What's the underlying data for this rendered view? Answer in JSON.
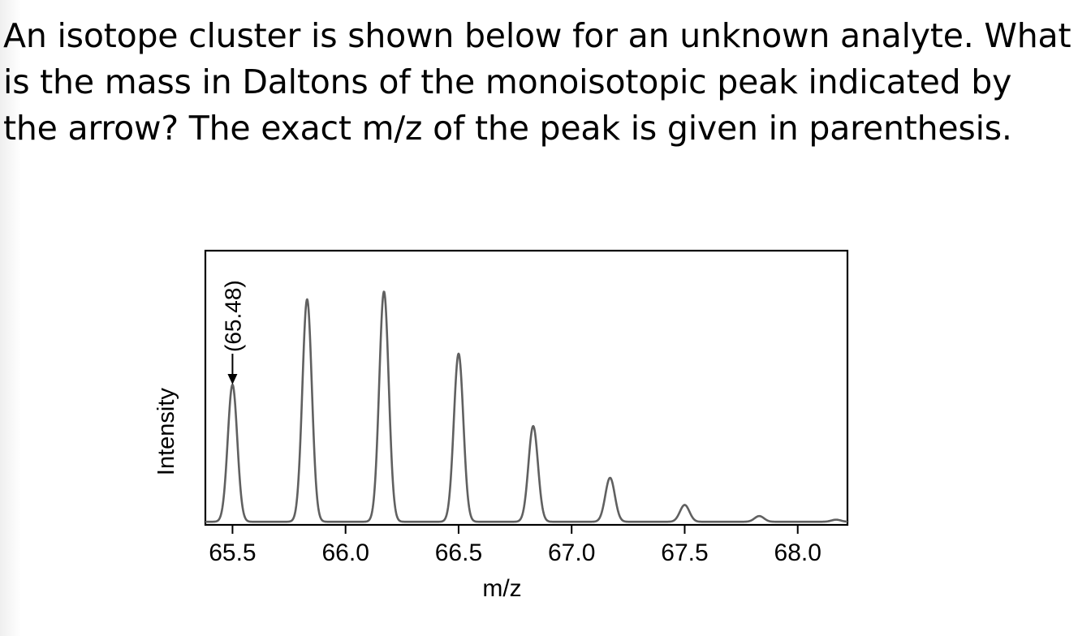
{
  "question": {
    "text": "An isotope cluster is shown below for an unknown analyte. What is the mass in Daltons of the monoisotopic peak indicated by the arrow? The exact m/z of the peak is given in parenthesis."
  },
  "chart_data": {
    "type": "line",
    "title": "",
    "xlabel": "m/z",
    "ylabel": "Intensity",
    "xlim": [
      65.38,
      68.22
    ],
    "ylim": [
      0,
      1.06
    ],
    "x_ticks": [
      "65.5",
      "66.0",
      "66.5",
      "67.0",
      "67.5",
      "68.0"
    ],
    "y_ticks": [],
    "grid": false,
    "legend": "none",
    "series": [
      {
        "peaks": [
          {
            "x": 65.5,
            "y": 0.53
          },
          {
            "x": 65.83,
            "y": 0.86
          },
          {
            "x": 66.17,
            "y": 0.89
          },
          {
            "x": 66.5,
            "y": 0.65
          },
          {
            "x": 66.83,
            "y": 0.37
          },
          {
            "x": 67.17,
            "y": 0.17
          },
          {
            "x": 67.5,
            "y": 0.065
          },
          {
            "x": 67.83,
            "y": 0.022
          },
          {
            "x": 68.17,
            "y": 0.008
          }
        ]
      }
    ],
    "annotations": [
      {
        "text": "(65.48)",
        "x": 65.5,
        "arrow": "down"
      }
    ],
    "line_color": "#606060"
  }
}
